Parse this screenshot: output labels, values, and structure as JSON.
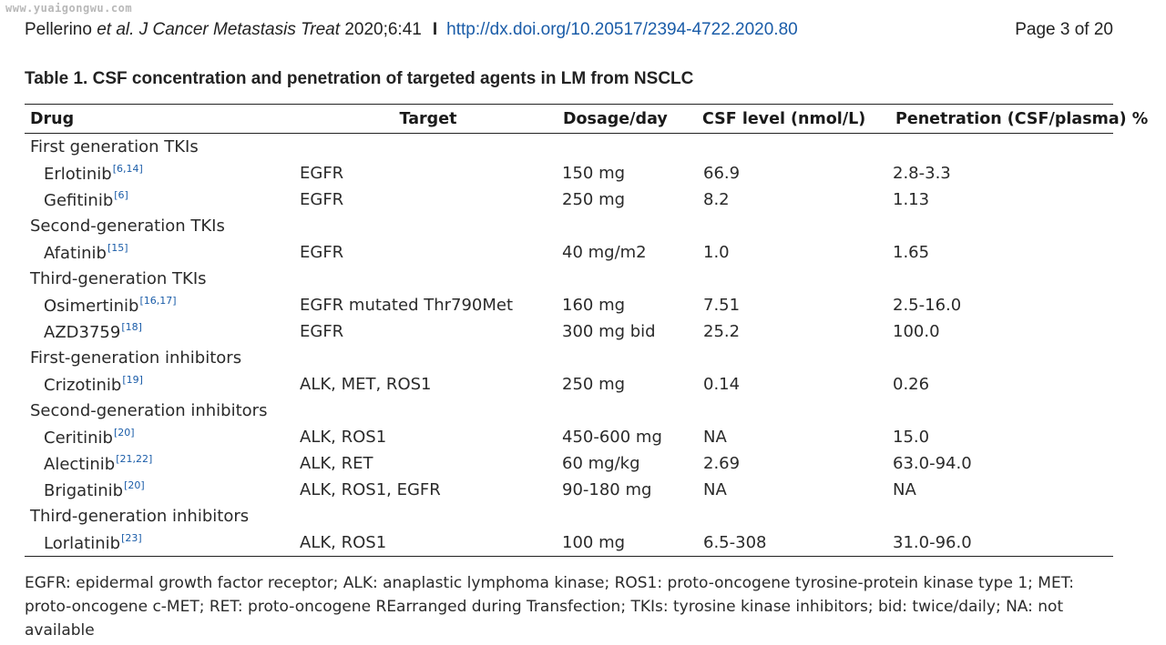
{
  "watermark": "www.yuaigongwu.com",
  "header": {
    "author": "Pellerino",
    "etal": "et al.",
    "journal": "J Cancer Metastasis Treat",
    "year_vol": "2020;6:41",
    "separator": "I",
    "doi": "http://dx.doi.org/10.20517/2394-4722.2020.80",
    "page": "Page 3 of 20"
  },
  "table": {
    "caption": "Table 1. CSF concentration and penetration of targeted agents in LM from NSCLC",
    "columns": [
      "Drug",
      "Target",
      "Dosage/day",
      "CSF level (nmol/L)",
      "Penetration (CSF/plasma) %"
    ],
    "rows": [
      {
        "group": "First generation TKIs"
      },
      {
        "drug": "Erlotinib",
        "ref": "[6,14]",
        "target": "EGFR",
        "dose": "150 mg",
        "csf": "66.9",
        "pen": "2.8-3.3"
      },
      {
        "drug": "Gefitinib",
        "ref": "[6]",
        "target": "EGFR",
        "dose": "250 mg",
        "csf": "8.2",
        "pen": "1.13"
      },
      {
        "group": "Second-generation TKIs"
      },
      {
        "drug": "Afatinib",
        "ref": "[15]",
        "target": "EGFR",
        "dose": "40 mg/m2",
        "csf": "1.0",
        "pen": "1.65"
      },
      {
        "group": "Third-generation TKIs"
      },
      {
        "drug": "Osimertinib",
        "ref": "[16,17]",
        "target": "EGFR mutated Thr790Met",
        "dose": "160 mg",
        "csf": "7.51",
        "pen": "2.5-16.0"
      },
      {
        "drug": "AZD3759",
        "ref": "[18]",
        "target": "EGFR",
        "dose": "300 mg bid",
        "csf": "25.2",
        "pen": "100.0"
      },
      {
        "group": "First-generation inhibitors"
      },
      {
        "drug": "Crizotinib",
        "ref": "[19]",
        "target": "ALK, MET, ROS1",
        "dose": "250 mg",
        "csf": "0.14",
        "pen": "0.26"
      },
      {
        "group": "Second-generation inhibitors"
      },
      {
        "drug": "Ceritinib",
        "ref": "[20]",
        "target": "ALK, ROS1",
        "dose": "450-600 mg",
        "csf": "NA",
        "pen": "15.0"
      },
      {
        "drug": "Alectinib",
        "ref": "[21,22]",
        "target": "ALK, RET",
        "dose": "60 mg/kg",
        "csf": "2.69",
        "pen": "63.0-94.0"
      },
      {
        "drug": "Brigatinib",
        "ref": "[20]",
        "target": "ALK, ROS1, EGFR",
        "dose": "90-180 mg",
        "csf": "NA",
        "pen": "NA"
      },
      {
        "group": "Third-generation inhibitors"
      },
      {
        "drug": "Lorlatinib",
        "ref": "[23]",
        "target": "ALK, ROS1",
        "dose": "100 mg",
        "csf": "6.5-308",
        "pen": "31.0-96.0"
      }
    ]
  },
  "footnote": "EGFR: epidermal growth factor receptor; ALK: anaplastic lymphoma kinase; ROS1: proto-oncogene tyrosine-protein kinase type 1; MET: proto-oncogene c-MET; RET: proto-oncogene REarranged during Transfection; TKIs: tyrosine kinase inhibitors; bid: twice/daily; NA: not available",
  "colors": {
    "link": "#1a5ca8",
    "text": "#2a2a2a",
    "rule": "#222222"
  }
}
